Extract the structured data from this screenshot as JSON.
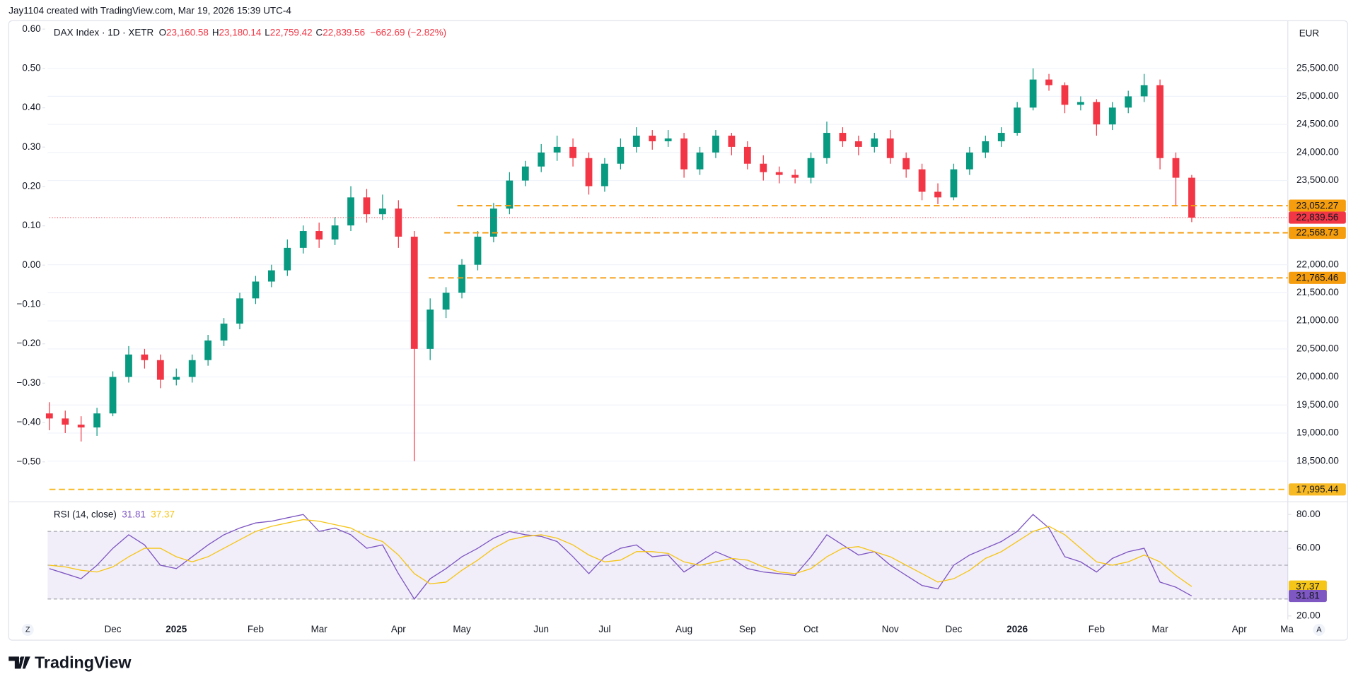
{
  "header": "Jay1104 created with TradingView.com, Mar 19, 2026 15:39 UTC-4",
  "buttons": [
    "Z",
    "A"
  ],
  "footer": {
    "logo": "TradingView"
  },
  "chart_data": [
    {
      "type": "candlestick",
      "title": "DAX Index · 1D · XETR",
      "ohlc_legend": [
        {
          "key": "O",
          "value": "23,160.58"
        },
        {
          "key": "H",
          "value": "23,180.14"
        },
        {
          "key": "L",
          "value": "22,759.42"
        },
        {
          "key": "C",
          "value": "22,839.56"
        }
      ],
      "change": "−662.69 (−2.82%)",
      "currency": "EUR",
      "up_color": "#089981",
      "down_color": "#f23645",
      "categories": [
        null,
        null,
        null,
        null,
        "Dec",
        null,
        null,
        null,
        "2025",
        null,
        null,
        null,
        null,
        "Feb",
        null,
        null,
        null,
        "Mar",
        null,
        null,
        null,
        null,
        "Apr",
        null,
        null,
        null,
        "May",
        null,
        null,
        null,
        null,
        "Jun",
        null,
        null,
        null,
        "Jul",
        null,
        null,
        null,
        null,
        "Aug",
        null,
        null,
        null,
        "Sep",
        null,
        null,
        null,
        "Oct",
        null,
        null,
        null,
        null,
        "Nov",
        null,
        null,
        null,
        "Dec",
        null,
        null,
        null,
        "2026",
        null,
        null,
        null,
        null,
        "Feb",
        null,
        null,
        null,
        "Mar",
        null,
        null,
        null,
        null,
        "Apr",
        null,
        null,
        "Ma"
      ],
      "open": [
        19350,
        19260,
        19150,
        19100,
        19350,
        20000,
        20400,
        20300,
        19950,
        20000,
        20300,
        20650,
        20950,
        21400,
        21700,
        21900,
        22300,
        22600,
        22450,
        22700,
        23200,
        22900,
        23000,
        22500,
        20500,
        21200,
        21500,
        22000,
        22500,
        23000,
        23500,
        23750,
        24000,
        24100,
        23900,
        23400,
        23800,
        24100,
        24300,
        24200,
        24250,
        23700,
        24000,
        24300,
        24100,
        23800,
        23650,
        23600,
        23550,
        23900,
        24350,
        24200,
        24100,
        24250,
        23900,
        23700,
        23300,
        23200,
        23700,
        24000,
        24200,
        24350,
        24800,
        25300,
        25200,
        24850,
        24900,
        24500,
        24800,
        25000,
        25200,
        23900,
        23550,
        null,
        null,
        null,
        null,
        null,
        null
      ],
      "high": [
        19550,
        19400,
        19300,
        19450,
        20100,
        20550,
        20500,
        20400,
        20150,
        20400,
        20750,
        21050,
        21500,
        21800,
        22000,
        22450,
        22700,
        22750,
        22850,
        23400,
        23350,
        23250,
        23150,
        22600,
        21400,
        21600,
        22100,
        22600,
        23100,
        23650,
        23850,
        24150,
        24300,
        24250,
        24000,
        23900,
        24250,
        24450,
        24400,
        24400,
        24350,
        24100,
        24400,
        24350,
        24200,
        23950,
        23750,
        23700,
        24000,
        24550,
        24450,
        24300,
        24350,
        24400,
        24000,
        23800,
        23450,
        23800,
        24100,
        24300,
        24450,
        24900,
        25500,
        25400,
        25250,
        25000,
        24950,
        24900,
        25100,
        25400,
        25300,
        24000,
        23600,
        null,
        null,
        null,
        null,
        null,
        null
      ],
      "low": [
        19050,
        19000,
        18850,
        18950,
        19300,
        19900,
        20150,
        19800,
        19850,
        19900,
        20200,
        20550,
        20850,
        21300,
        21600,
        21800,
        22200,
        22300,
        22350,
        22600,
        22750,
        22800,
        22300,
        18500,
        20300,
        21050,
        21400,
        21900,
        22400,
        22900,
        23400,
        23650,
        23850,
        23750,
        23250,
        23300,
        23700,
        24000,
        24050,
        24100,
        23550,
        23600,
        23900,
        23950,
        23700,
        23500,
        23450,
        23450,
        23450,
        23800,
        24100,
        23950,
        24000,
        23800,
        23550,
        23150,
        23080,
        23150,
        23600,
        23900,
        24100,
        24300,
        24750,
        25100,
        24700,
        24750,
        24300,
        24400,
        24700,
        24900,
        23700,
        23052,
        22759,
        null,
        null,
        null,
        null,
        null,
        null
      ],
      "close": [
        19260,
        19150,
        19100,
        19350,
        20000,
        20400,
        20300,
        19950,
        20000,
        20300,
        20650,
        20950,
        21400,
        21700,
        21900,
        22300,
        22600,
        22450,
        22700,
        23200,
        22900,
        23000,
        22500,
        20500,
        21200,
        21500,
        22000,
        22500,
        23000,
        23500,
        23750,
        24000,
        24100,
        23900,
        23400,
        23800,
        24100,
        24300,
        24200,
        24250,
        23700,
        24000,
        24300,
        24100,
        23800,
        23650,
        23600,
        23550,
        23900,
        24350,
        24200,
        24100,
        24250,
        23900,
        23700,
        23300,
        23200,
        23700,
        24000,
        24200,
        24350,
        24800,
        25300,
        25200,
        24850,
        24900,
        24500,
        24800,
        25000,
        25200,
        23900,
        23550,
        22840,
        null,
        null,
        null,
        null,
        null,
        null
      ],
      "ylim": [
        17807,
        26332
      ],
      "yticks": [
        {
          "value": 18500,
          "label": "18,500.00"
        },
        {
          "value": 19000,
          "label": "19,000.00"
        },
        {
          "value": 19500,
          "label": "19,500.00"
        },
        {
          "value": 20000,
          "label": "20,000.00"
        },
        {
          "value": 20500,
          "label": "20,500.00"
        },
        {
          "value": 21000,
          "label": "21,000.00"
        },
        {
          "value": 21500,
          "label": "21,500.00"
        },
        {
          "value": 22000,
          "label": "22,000.00"
        },
        {
          "value": 23500,
          "label": "23,500.00"
        },
        {
          "value": 24000,
          "label": "24,000.00"
        },
        {
          "value": 24500,
          "label": "24,500.00"
        },
        {
          "value": 25000,
          "label": "25,000.00"
        },
        {
          "value": 25500,
          "label": "25,500.00"
        }
      ],
      "y2lim": [
        -0.597,
        0.619
      ],
      "y2ticks": [
        {
          "value": 0.6,
          "label": "0.60"
        },
        {
          "value": 0.5,
          "label": "0.50"
        },
        {
          "value": 0.4,
          "label": "0.40"
        },
        {
          "value": 0.3,
          "label": "0.30"
        },
        {
          "value": 0.2,
          "label": "0.20"
        },
        {
          "value": 0.1,
          "label": "0.10"
        },
        {
          "value": 0,
          "label": "0.00"
        },
        {
          "value": -0.1,
          "label": "−0.10"
        },
        {
          "value": -0.2,
          "label": "−0.20"
        },
        {
          "value": -0.3,
          "label": "−0.30"
        },
        {
          "value": -0.4,
          "label": "−0.40"
        },
        {
          "value": -0.5,
          "label": "−0.50"
        }
      ],
      "grid": true,
      "price_lines": [
        {
          "value": 23052.27,
          "label": "23,052.27",
          "color": "#f59d0d",
          "text_color": "#131722",
          "style": "dashed"
        },
        {
          "value": 22839.56,
          "label": "22,839.56",
          "color": "#f23645",
          "text_color": "#ffffff",
          "style": "dotted"
        },
        {
          "value": 22568.73,
          "label": "22,568.73",
          "color": "#f59d0d",
          "text_color": "#131722",
          "style": "dashed"
        },
        {
          "value": 21765.46,
          "label": "21,765.46",
          "color": "#f59d0d",
          "text_color": "#131722",
          "style": "dashed"
        },
        {
          "value": 17995.44,
          "label": "17,995.44",
          "color": "#f7b924",
          "text_color": "#131722",
          "style": "dashed"
        }
      ]
    },
    {
      "type": "line",
      "title": "RSI (14, close)",
      "series": [
        {
          "color": "#7e57c2",
          "values": [
            48,
            45,
            42,
            50,
            60,
            68,
            62,
            50,
            48,
            55,
            62,
            68,
            72,
            75,
            76,
            78,
            80,
            70,
            72,
            68,
            60,
            62,
            45,
            30,
            42,
            48,
            55,
            60,
            66,
            70,
            68,
            67,
            64,
            55,
            45,
            55,
            60,
            62,
            55,
            56,
            46,
            52,
            58,
            54,
            48,
            46,
            45,
            44,
            55,
            68,
            62,
            56,
            58,
            50,
            44,
            38,
            36,
            50,
            56,
            60,
            64,
            70,
            80,
            72,
            55,
            52,
            46,
            54,
            58,
            60,
            40,
            37,
            31.81,
            null,
            null,
            null,
            null,
            null,
            null
          ]
        },
        {
          "color": "#f5c518",
          "values": [
            50,
            49,
            47,
            46,
            49,
            55,
            60,
            60,
            55,
            52,
            55,
            60,
            65,
            70,
            73,
            75,
            77,
            76,
            74,
            72,
            67,
            64,
            56,
            45,
            39,
            40,
            47,
            53,
            60,
            65,
            67,
            68,
            66,
            62,
            56,
            52,
            53,
            58,
            58,
            57,
            52,
            50,
            52,
            54,
            53,
            49,
            46,
            45,
            48,
            55,
            60,
            61,
            58,
            55,
            50,
            45,
            40,
            42,
            47,
            54,
            58,
            64,
            70,
            73,
            68,
            60,
            52,
            50,
            52,
            56,
            52,
            44,
            37.37,
            null,
            null,
            null,
            null,
            null,
            null
          ]
        }
      ],
      "ylim": [
        20,
        86
      ],
      "yticks": [
        {
          "value": 80,
          "label": "80.00"
        },
        {
          "value": 60,
          "label": "60.00"
        },
        {
          "value": 20,
          "label": "20.00"
        }
      ],
      "levels": [
        70,
        50,
        30
      ]
    }
  ]
}
